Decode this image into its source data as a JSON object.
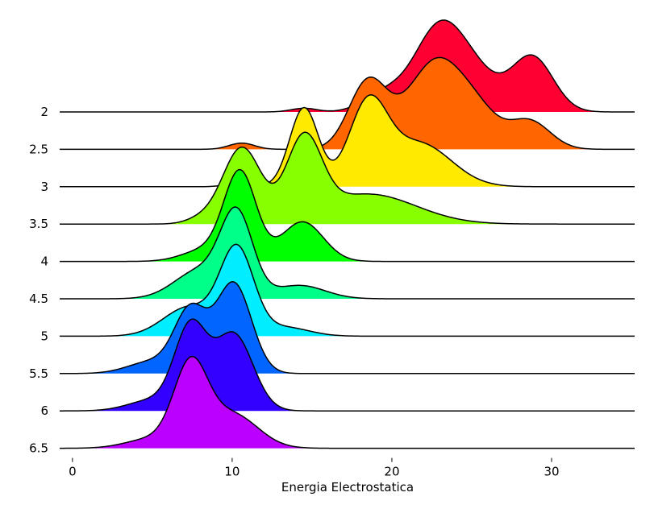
{
  "chart_data": {
    "type": "area",
    "xlabel": "Energia Electrostatica",
    "xlim": [
      -0.8,
      35.2
    ],
    "x_ticks": [
      0,
      10,
      20,
      30
    ],
    "categories": [
      "2",
      "2.5",
      "3",
      "3.5",
      "4",
      "4.5",
      "5",
      "5.5",
      "6",
      "6.5"
    ],
    "category_values": [
      2,
      2.5,
      3,
      3.5,
      4,
      4.5,
      5,
      5.5,
      6,
      6.5
    ],
    "grid": false,
    "legend": "none",
    "series": [
      {
        "color": "#ff0033",
        "peaks": [
          {
            "mu": 22.8,
            "sigma": 1.5,
            "h": 1.0
          },
          {
            "mu": 25.0,
            "sigma": 1.6,
            "h": 0.52
          },
          {
            "mu": 19.5,
            "sigma": 1.3,
            "h": 0.24
          },
          {
            "mu": 28.8,
            "sigma": 1.3,
            "h": 0.74
          },
          {
            "mu": 14.5,
            "sigma": 0.8,
            "h": 0.05
          }
        ]
      },
      {
        "color": "#ff6600",
        "peaks": [
          {
            "mu": 18.5,
            "sigma": 1.2,
            "h": 0.75
          },
          {
            "mu": 22.8,
            "sigma": 1.8,
            "h": 1.0
          },
          {
            "mu": 25.5,
            "sigma": 1.3,
            "h": 0.26
          },
          {
            "mu": 28.6,
            "sigma": 1.3,
            "h": 0.32
          },
          {
            "mu": 10.6,
            "sigma": 0.8,
            "h": 0.07
          }
        ]
      },
      {
        "color": "#ffea00",
        "peaks": [
          {
            "mu": 14.5,
            "sigma": 0.9,
            "h": 1.0
          },
          {
            "mu": 18.5,
            "sigma": 1.2,
            "h": 1.0
          },
          {
            "mu": 21.7,
            "sigma": 2.0,
            "h": 0.55
          },
          {
            "mu": 10.5,
            "sigma": 0.8,
            "h": 0.05
          }
        ]
      },
      {
        "color": "#88ff00",
        "peaks": [
          {
            "mu": 10.6,
            "sigma": 1.2,
            "h": 0.96
          },
          {
            "mu": 14.5,
            "sigma": 1.1,
            "h": 1.0
          },
          {
            "mu": 18.5,
            "sigma": 3.0,
            "h": 0.38
          },
          {
            "mu": 8.0,
            "sigma": 0.9,
            "h": 0.06
          }
        ]
      },
      {
        "color": "#00ff00",
        "peaks": [
          {
            "mu": 10.5,
            "sigma": 1.0,
            "h": 1.0
          },
          {
            "mu": 14.4,
            "sigma": 1.3,
            "h": 0.45
          },
          {
            "mu": 8.3,
            "sigma": 1.4,
            "h": 0.13
          }
        ]
      },
      {
        "color": "#00ff88",
        "peaks": [
          {
            "mu": 10.3,
            "sigma": 1.0,
            "h": 0.9
          },
          {
            "mu": 8.0,
            "sigma": 1.6,
            "h": 0.32
          },
          {
            "mu": 14.2,
            "sigma": 1.6,
            "h": 0.15
          }
        ]
      },
      {
        "color": "#00eeff",
        "peaks": [
          {
            "mu": 10.3,
            "sigma": 1.05,
            "h": 0.97
          },
          {
            "mu": 7.3,
            "sigma": 1.6,
            "h": 0.33
          },
          {
            "mu": 13.3,
            "sigma": 1.5,
            "h": 0.1
          }
        ]
      },
      {
        "color": "#0066ff",
        "peaks": [
          {
            "mu": 7.4,
            "sigma": 1.0,
            "h": 0.62
          },
          {
            "mu": 10.1,
            "sigma": 1.1,
            "h": 0.9
          },
          {
            "mu": 5.0,
            "sigma": 1.5,
            "h": 0.12
          }
        ]
      },
      {
        "color": "#3300ff",
        "peaks": [
          {
            "mu": 7.4,
            "sigma": 1.0,
            "h": 1.0
          },
          {
            "mu": 10.1,
            "sigma": 1.2,
            "h": 0.93
          },
          {
            "mu": 5.0,
            "sigma": 1.5,
            "h": 0.13
          }
        ]
      },
      {
        "color": "#bb00ff",
        "peaks": [
          {
            "mu": 7.4,
            "sigma": 1.05,
            "h": 1.0
          },
          {
            "mu": 10.0,
            "sigma": 1.6,
            "h": 0.43
          },
          {
            "mu": 5.0,
            "sigma": 1.6,
            "h": 0.12
          }
        ]
      }
    ]
  }
}
